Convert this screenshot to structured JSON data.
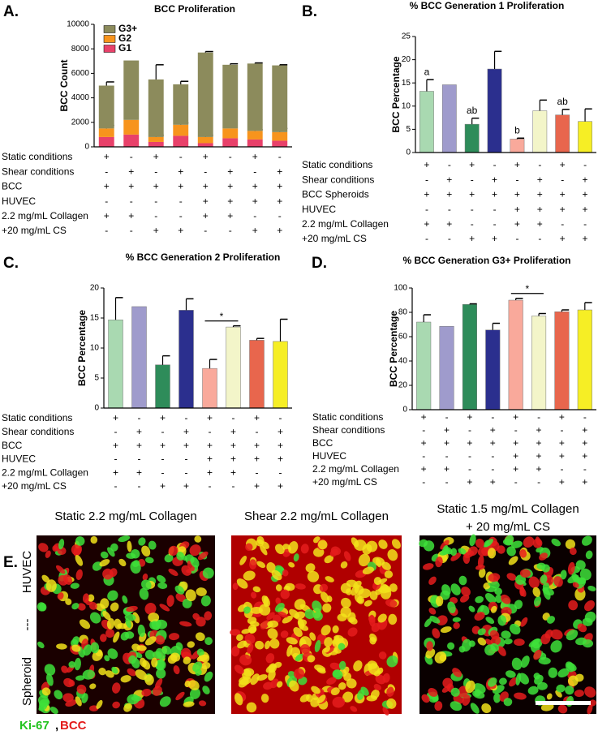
{
  "chart_data": [
    {
      "type": "stacked_bar",
      "panel": "A.",
      "title": "BCC Proliferation",
      "ylabel": "BCC Count",
      "ylim": [
        0,
        10000
      ],
      "yticks": [
        0,
        2000,
        4000,
        6000,
        8000,
        10000
      ],
      "legend": "top-left",
      "series": [
        {
          "name": "G1",
          "color": "#e8416a",
          "values": [
            800,
            1000,
            400,
            900,
            300,
            700,
            600,
            500
          ]
        },
        {
          "name": "G2",
          "color": "#f7941d",
          "values": [
            700,
            1200,
            400,
            900,
            500,
            800,
            700,
            700
          ],
          "errors": [
            250,
            null,
            150,
            150,
            150,
            null,
            100,
            300
          ]
        },
        {
          "name": "G3+",
          "color": "#8c8b5c",
          "values": [
            3500,
            4850,
            4700,
            3300,
            6900,
            5200,
            5500,
            5450
          ],
          "errors": [
            300,
            null,
            1200,
            250,
            80,
            80,
            50,
            50
          ]
        }
      ],
      "conditions": [
        {
          "label": "Static conditions",
          "signs": [
            "+",
            "-",
            "+",
            "-",
            "+",
            "-",
            "+",
            "-"
          ]
        },
        {
          "label": "Shear conditions",
          "signs": [
            "-",
            "+",
            "-",
            "+",
            "-",
            "+",
            "-",
            "+"
          ]
        },
        {
          "label": "BCC",
          "signs": [
            "+",
            "+",
            "+",
            "+",
            "+",
            "+",
            "+",
            "+"
          ]
        },
        {
          "label": "HUVEC",
          "signs": [
            "-",
            "-",
            "-",
            "-",
            "+",
            "+",
            "+",
            "+"
          ]
        },
        {
          "label": "2.2 mg/mL Collagen",
          "signs": [
            "+",
            "+",
            "-",
            "-",
            "+",
            "+",
            "-",
            "-"
          ]
        },
        {
          "label": "+20 mg/mL CS",
          "signs": [
            "-",
            "-",
            "+",
            "+",
            "-",
            "-",
            "+",
            "+"
          ]
        }
      ]
    },
    {
      "type": "bar",
      "panel": "B.",
      "title": "% BCC Generation 1 Proliferation",
      "ylabel": "BCC Percentage",
      "ylim": [
        0,
        25
      ],
      "yticks": [
        0,
        5,
        10,
        15,
        20,
        25
      ],
      "colors": [
        "#a9d9b1",
        "#9f9bcc",
        "#2e8c5a",
        "#2b2f8e",
        "#f9a99b",
        "#f3f5c9",
        "#e8664d",
        "#f6ee25"
      ],
      "values": [
        13.2,
        14.6,
        6.1,
        18,
        2.9,
        9,
        8.1,
        6.7
      ],
      "errors": [
        2.5,
        null,
        1.3,
        3.8,
        0.2,
        2.3,
        1.2,
        2.7
      ],
      "annotations": [
        {
          "text": "a",
          "index": 0
        },
        {
          "text": "ab",
          "index": 2
        },
        {
          "text": "b",
          "index": 4
        },
        {
          "text": "ab",
          "index": 6
        }
      ],
      "conditions": [
        {
          "label": "Static conditions",
          "signs": [
            "+",
            "-",
            "+",
            "-",
            "+",
            "-",
            "+",
            "-"
          ]
        },
        {
          "label": "Shear conditions",
          "signs": [
            "-",
            "+",
            "-",
            "+",
            "-",
            "+",
            "-",
            "+"
          ]
        },
        {
          "label": "BCC Spheroids",
          "signs": [
            "+",
            "+",
            "+",
            "+",
            "+",
            "+",
            "+",
            "+"
          ]
        },
        {
          "label": "HUVEC",
          "signs": [
            "-",
            "-",
            "-",
            "-",
            "+",
            "+",
            "+",
            "+"
          ]
        },
        {
          "label": "2.2 mg/mL Collagen",
          "signs": [
            "+",
            "+",
            "-",
            "-",
            "+",
            "+",
            "-",
            "-"
          ]
        },
        {
          "label": "+20 mg/mL CS",
          "signs": [
            "-",
            "-",
            "+",
            "+",
            "-",
            "-",
            "+",
            "+"
          ]
        }
      ]
    },
    {
      "type": "bar",
      "panel": "C.",
      "title": "% BCC Generation 2 Proliferation",
      "ylabel": "BCC Percentage",
      "ylim": [
        0,
        20
      ],
      "yticks": [
        0,
        5,
        10,
        15,
        20
      ],
      "colors": [
        "#a9d9b1",
        "#9f9bcc",
        "#2e8c5a",
        "#2b2f8e",
        "#f9a99b",
        "#f3f5c9",
        "#e8664d",
        "#f6ee25"
      ],
      "values": [
        14.7,
        16.9,
        7.2,
        16.3,
        6.6,
        13.5,
        11.3,
        11.1
      ],
      "errors": [
        3.7,
        null,
        1.5,
        1.9,
        1.5,
        0.2,
        0.3,
        3.7
      ],
      "significance": {
        "text": "*",
        "from": 4,
        "to": 5
      },
      "conditions": [
        {
          "label": "Static conditions",
          "signs": [
            "+",
            "-",
            "+",
            "-",
            "+",
            "-",
            "+",
            "-"
          ]
        },
        {
          "label": "Shear conditions",
          "signs": [
            "-",
            "+",
            "-",
            "+",
            "-",
            "+",
            "-",
            "+"
          ]
        },
        {
          "label": "BCC",
          "signs": [
            "+",
            "+",
            "+",
            "+",
            "+",
            "+",
            "+",
            "+"
          ]
        },
        {
          "label": "HUVEC",
          "signs": [
            "-",
            "-",
            "-",
            "-",
            "+",
            "+",
            "+",
            "+"
          ]
        },
        {
          "label": "2.2 mg/mL Collagen",
          "signs": [
            "+",
            "+",
            "-",
            "-",
            "+",
            "+",
            "-",
            "-"
          ]
        },
        {
          "label": "+20 mg/mL CS",
          "signs": [
            "-",
            "-",
            "+",
            "+",
            "-",
            "-",
            "+",
            "+"
          ]
        }
      ]
    },
    {
      "type": "bar",
      "panel": "D.",
      "title": "% BCC Generation G3+ Proliferation",
      "ylabel": "BCC Percentage",
      "ylim": [
        0,
        100
      ],
      "yticks": [
        0,
        20,
        40,
        60,
        80,
        100
      ],
      "colors": [
        "#a9d9b1",
        "#9f9bcc",
        "#2e8c5a",
        "#2b2f8e",
        "#f9a99b",
        "#f3f5c9",
        "#e8664d",
        "#f6ee25"
      ],
      "values": [
        72,
        68.5,
        86.5,
        65.5,
        90,
        77,
        80.5,
        82
      ],
      "errors": [
        6,
        null,
        0.5,
        5.5,
        1.5,
        2,
        1.5,
        6
      ],
      "significance": {
        "text": "*",
        "from": 4,
        "to": 5
      },
      "conditions": [
        {
          "label": "Static conditions",
          "signs": [
            "+",
            "-",
            "+",
            "-",
            "+",
            "-",
            "+",
            "-"
          ]
        },
        {
          "label": "Shear conditions",
          "signs": [
            "-",
            "+",
            "-",
            "+",
            "-",
            "+",
            "-",
            "+"
          ]
        },
        {
          "label": "BCC",
          "signs": [
            "+",
            "+",
            "+",
            "+",
            "+",
            "+",
            "+",
            "+"
          ]
        },
        {
          "label": "HUVEC",
          "signs": [
            "-",
            "-",
            "-",
            "-",
            "+",
            "+",
            "+",
            "+"
          ]
        },
        {
          "label": "2.2 mg/mL Collagen",
          "signs": [
            "+",
            "+",
            "-",
            "-",
            "+",
            "+",
            "-",
            "-"
          ]
        },
        {
          "label": "+20 mg/mL CS",
          "signs": [
            "-",
            "-",
            "+",
            "+",
            "-",
            "-",
            "+",
            "+"
          ]
        }
      ]
    }
  ],
  "images": {
    "panel": "E.",
    "captions": [
      [
        "Static 2.2 mg/mL Collagen"
      ],
      [
        "Shear 2.2 mg/mL Collagen"
      ],
      [
        "Static 1.5 mg/mL Collagen",
        "+ 20 mg/mL CS"
      ]
    ],
    "side_labels": [
      "HUVEC",
      "---",
      "Spheroid"
    ],
    "legend": [
      "Ki-67",
      ",",
      "BCC"
    ]
  }
}
